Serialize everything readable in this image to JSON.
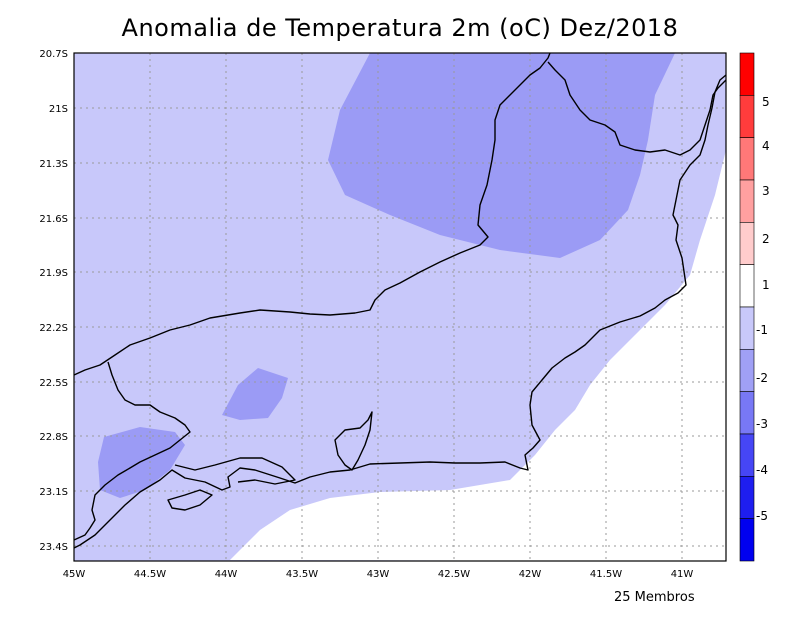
{
  "title": "Anomalia de Temperatura 2m (oC) Dez/2018",
  "footer": "25 Membros",
  "map": {
    "lon_range": [
      -45,
      -40.7
    ],
    "lat_range": [
      -23.5,
      -20.7
    ],
    "lat_ticks": [
      "20.7S",
      "21S",
      "21.3S",
      "21.6S",
      "21.9S",
      "22.2S",
      "22.5S",
      "22.8S",
      "23.1S",
      "23.4S"
    ],
    "lon_ticks": [
      "45W",
      "44.5W",
      "44W",
      "43.5W",
      "43W",
      "42.5W",
      "42W",
      "41.5W",
      "41W"
    ],
    "grid": true,
    "fill_colors": {
      "band_minus1_0": "#c8c8fa",
      "band_minus2_minus1": "#9b9bf5",
      "ocean_positive": "#ffffff"
    }
  },
  "colorbar": {
    "labels": [
      "5",
      "4",
      "3",
      "2",
      "1",
      "-1",
      "-2",
      "-3",
      "-4",
      "-5"
    ],
    "colors": [
      "#ff0000",
      "#ff3c3c",
      "#ff7878",
      "#ffa0a0",
      "#ffcccc",
      "#ffffff",
      "#c8c8fa",
      "#a0a0f5",
      "#7878f5",
      "#4646f5",
      "#1e1ef0",
      "#0000f0"
    ]
  }
}
